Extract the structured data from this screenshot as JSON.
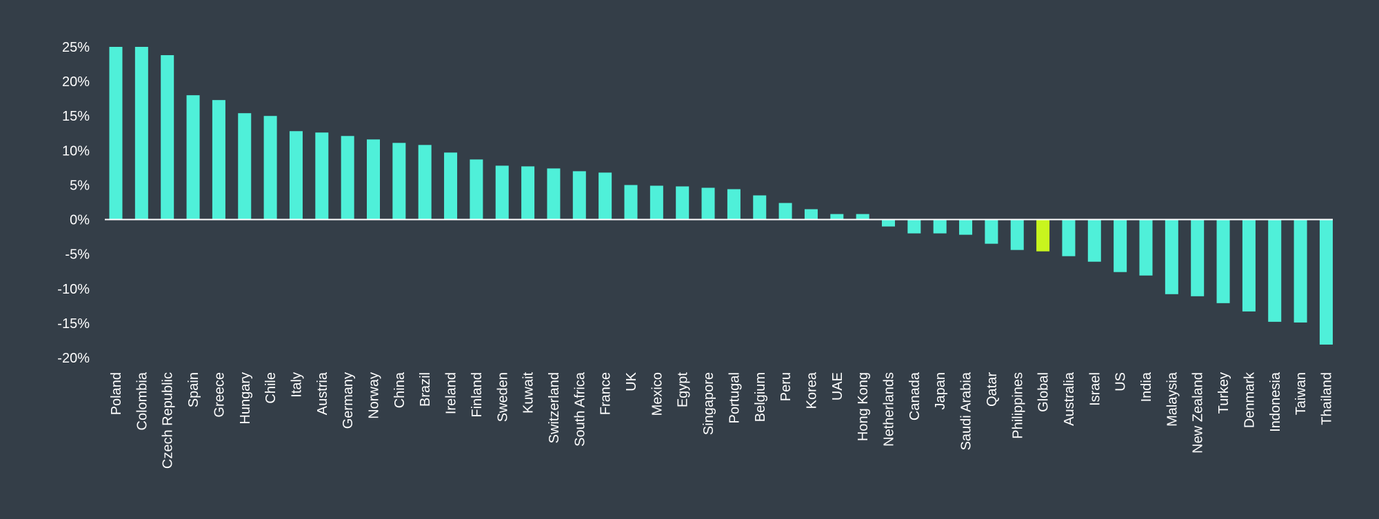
{
  "chart_data": {
    "type": "bar",
    "title": "",
    "xlabel": "",
    "ylabel": "",
    "ylim": [
      -20,
      25
    ],
    "yticks": [
      25,
      20,
      15,
      10,
      5,
      0,
      -5,
      -10,
      -15,
      -20
    ],
    "ytick_labels": [
      "25%",
      "20%",
      "15%",
      "10%",
      "5%",
      "0%",
      "-5%",
      "-10%",
      "-15%",
      "-20%"
    ],
    "grid": false,
    "legend": "none",
    "categories": [
      "Poland",
      "Colombia",
      "Czech Republic",
      "Spain",
      "Greece",
      "Hungary",
      "Chile",
      "Italy",
      "Austria",
      "Germany",
      "Norway",
      "China",
      "Brazil",
      "Ireland",
      "Finland",
      "Sweden",
      "Kuwait",
      "Switzerland",
      "South Africa",
      "France",
      "UK",
      "Mexico",
      "Egypt",
      "Singapore",
      "Portugal",
      "Belgium",
      "Peru",
      "Korea",
      "UAE",
      "Hong Kong",
      "Netherlands",
      "Canada",
      "Japan",
      "Saudi Arabia",
      "Qatar",
      "Philippines",
      "Global",
      "Australia",
      "Israel",
      "US",
      "India",
      "Malaysia",
      "New Zealand",
      "Turkey",
      "Denmark",
      "Indonesia",
      "Taiwan",
      "Thailand"
    ],
    "values": [
      25.0,
      25.0,
      23.8,
      18.0,
      17.3,
      15.4,
      15.0,
      12.8,
      12.6,
      12.1,
      11.6,
      11.1,
      10.8,
      9.7,
      8.7,
      7.8,
      7.7,
      7.4,
      7.0,
      6.8,
      5.0,
      4.9,
      4.8,
      4.6,
      4.4,
      3.5,
      2.4,
      1.5,
      0.8,
      0.8,
      -1.0,
      -2.0,
      -2.0,
      -2.2,
      -3.5,
      -4.4,
      -4.6,
      -5.3,
      -6.1,
      -7.6,
      -8.1,
      -10.8,
      -11.1,
      -12.1,
      -13.3,
      -14.8,
      -14.9,
      -18.1
    ],
    "colors": {
      "bar": "#4ff0d9",
      "highlight": "#c8f51e",
      "axis": "#ffffff",
      "text": "#ffffff",
      "background": "#343e48"
    },
    "highlight_category": "Global"
  }
}
